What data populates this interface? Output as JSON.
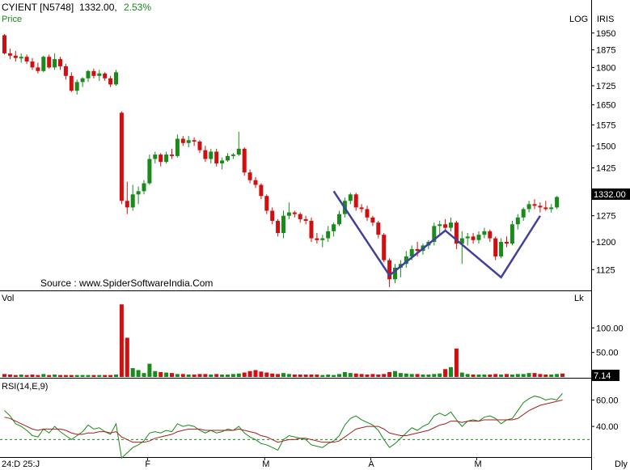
{
  "header": {
    "symbol": "CYIENT [N5748]",
    "last": "1332.00,",
    "change_pct": "2.53%",
    "change_color": "#1a8a1a"
  },
  "labels": {
    "price_panel": "Price",
    "log": "LOG",
    "iris": "IRIS",
    "source": "Source : www.SpiderSoftwareIndia.Com",
    "vol_panel": "Vol",
    "vol_unit": "Lk",
    "vol_badge": "7.14",
    "rsi_panel": "RSI(14,E,9)",
    "timeframe": "Dly",
    "price_badge": "1332.00",
    "date_start": "24:D 25:J"
  },
  "colors": {
    "up": "#1a8a1a",
    "down": "#d01010",
    "pattern": "#4040a0",
    "rsi_line": "#1a8a1a",
    "rsi_signal": "#a02020",
    "rsi_ref": "#1a8a1a"
  },
  "chart_data": [
    {
      "type": "candlestick",
      "panel": "price",
      "scale": "log",
      "ylim": [
        1080,
        1990
      ],
      "yticks": [
        1125,
        1200,
        1275,
        1350,
        1425,
        1500,
        1575,
        1650,
        1725,
        1800,
        1875,
        1950
      ],
      "xticks": [
        "F",
        "M",
        "A",
        "M"
      ],
      "candles": [
        [
          1940,
          1945,
          1855,
          1860
        ],
        [
          1860,
          1880,
          1835,
          1850
        ],
        [
          1850,
          1870,
          1825,
          1840
        ],
        [
          1838,
          1860,
          1820,
          1845
        ],
        [
          1845,
          1855,
          1815,
          1825
        ],
        [
          1825,
          1840,
          1790,
          1800
        ],
        [
          1800,
          1820,
          1775,
          1785
        ],
        [
          1785,
          1850,
          1780,
          1845
        ],
        [
          1845,
          1855,
          1795,
          1800
        ],
        [
          1800,
          1860,
          1790,
          1835
        ],
        [
          1835,
          1845,
          1790,
          1805
        ],
        [
          1805,
          1815,
          1750,
          1765
        ],
        [
          1765,
          1780,
          1700,
          1705
        ],
        [
          1705,
          1750,
          1690,
          1740
        ],
        [
          1740,
          1760,
          1720,
          1755
        ],
        [
          1755,
          1790,
          1740,
          1785
        ],
        [
          1785,
          1795,
          1755,
          1765
        ],
        [
          1765,
          1790,
          1745,
          1775
        ],
        [
          1775,
          1780,
          1745,
          1755
        ],
        [
          1755,
          1765,
          1720,
          1730
        ],
        [
          1730,
          1790,
          1725,
          1780
        ],
        [
          1620,
          1625,
          1310,
          1320
        ],
        [
          1320,
          1380,
          1280,
          1300
        ],
        [
          1300,
          1370,
          1290,
          1340
        ],
        [
          1340,
          1365,
          1310,
          1350
        ],
        [
          1350,
          1385,
          1340,
          1375
        ],
        [
          1375,
          1470,
          1370,
          1455
        ],
        [
          1455,
          1480,
          1440,
          1470
        ],
        [
          1470,
          1475,
          1430,
          1445
        ],
        [
          1445,
          1480,
          1440,
          1470
        ],
        [
          1470,
          1490,
          1455,
          1465
        ],
        [
          1465,
          1540,
          1460,
          1525
        ],
        [
          1525,
          1535,
          1500,
          1510
        ],
        [
          1510,
          1535,
          1495,
          1520
        ],
        [
          1520,
          1530,
          1500,
          1515
        ],
        [
          1515,
          1520,
          1475,
          1485
        ],
        [
          1485,
          1500,
          1445,
          1455
        ],
        [
          1455,
          1490,
          1440,
          1480
        ],
        [
          1480,
          1490,
          1430,
          1440
        ],
        [
          1440,
          1460,
          1420,
          1450
        ],
        [
          1450,
          1475,
          1445,
          1465
        ],
        [
          1465,
          1475,
          1455,
          1470
        ],
        [
          1470,
          1550,
          1465,
          1490
        ],
        [
          1490,
          1495,
          1400,
          1410
        ],
        [
          1410,
          1420,
          1375,
          1385
        ],
        [
          1385,
          1395,
          1360,
          1370
        ],
        [
          1370,
          1375,
          1325,
          1335
        ],
        [
          1335,
          1340,
          1280,
          1290
        ],
        [
          1290,
          1300,
          1250,
          1260
        ],
        [
          1260,
          1265,
          1215,
          1225
        ],
        [
          1225,
          1290,
          1210,
          1275
        ],
        [
          1275,
          1315,
          1265,
          1285
        ],
        [
          1285,
          1290,
          1270,
          1280
        ],
        [
          1280,
          1285,
          1255,
          1265
        ],
        [
          1265,
          1275,
          1250,
          1260
        ],
        [
          1260,
          1270,
          1200,
          1210
        ],
        [
          1210,
          1225,
          1195,
          1205
        ],
        [
          1205,
          1220,
          1185,
          1210
        ],
        [
          1210,
          1245,
          1200,
          1230
        ],
        [
          1230,
          1255,
          1215,
          1250
        ],
        [
          1250,
          1290,
          1245,
          1280
        ],
        [
          1280,
          1330,
          1270,
          1320
        ],
        [
          1320,
          1345,
          1310,
          1340
        ],
        [
          1340,
          1345,
          1290,
          1300
        ],
        [
          1300,
          1310,
          1285,
          1295
        ],
        [
          1295,
          1305,
          1260,
          1270
        ],
        [
          1270,
          1275,
          1245,
          1255
        ],
        [
          1255,
          1260,
          1210,
          1220
        ],
        [
          1220,
          1225,
          1145,
          1150
        ],
        [
          1150,
          1155,
          1080,
          1100
        ],
        [
          1100,
          1140,
          1090,
          1130
        ],
        [
          1130,
          1150,
          1105,
          1140
        ],
        [
          1140,
          1175,
          1130,
          1160
        ],
        [
          1160,
          1190,
          1150,
          1180
        ],
        [
          1180,
          1200,
          1160,
          1175
        ],
        [
          1175,
          1195,
          1165,
          1190
        ],
        [
          1190,
          1205,
          1180,
          1200
        ],
        [
          1200,
          1255,
          1190,
          1245
        ],
        [
          1245,
          1260,
          1220,
          1250
        ],
        [
          1250,
          1265,
          1230,
          1240
        ],
        [
          1240,
          1270,
          1230,
          1255
        ],
        [
          1255,
          1260,
          1180,
          1195
        ],
        [
          1195,
          1230,
          1140,
          1210
        ],
        [
          1210,
          1225,
          1190,
          1215
        ],
        [
          1215,
          1225,
          1195,
          1205
        ],
        [
          1205,
          1230,
          1195,
          1220
        ],
        [
          1220,
          1240,
          1210,
          1230
        ],
        [
          1230,
          1235,
          1200,
          1210
        ],
        [
          1210,
          1215,
          1150,
          1160
        ],
        [
          1160,
          1210,
          1155,
          1200
        ],
        [
          1200,
          1215,
          1185,
          1195
        ],
        [
          1195,
          1260,
          1190,
          1250
        ],
        [
          1250,
          1280,
          1235,
          1270
        ],
        [
          1270,
          1300,
          1260,
          1295
        ],
        [
          1295,
          1320,
          1285,
          1310
        ],
        [
          1310,
          1325,
          1295,
          1305
        ],
        [
          1305,
          1315,
          1285,
          1300
        ],
        [
          1300,
          1320,
          1290,
          1295
        ],
        [
          1295,
          1310,
          1285,
          1300
        ],
        [
          1300,
          1335,
          1295,
          1332
        ]
      ],
      "pattern_points": [
        [
          59,
          1350
        ],
        [
          69,
          1110
        ],
        [
          79,
          1232
        ],
        [
          89,
          1105
        ],
        [
          96,
          1275
        ]
      ]
    },
    {
      "type": "bar",
      "panel": "volume",
      "unit": "Lk",
      "ylim": [
        0,
        155
      ],
      "yticks": [
        50,
        100
      ],
      "values": [
        6,
        5,
        4,
        5,
        4,
        5,
        4,
        6,
        4,
        5,
        4,
        4,
        4,
        4,
        4,
        4,
        4,
        4,
        4,
        4,
        5,
        148,
        80,
        18,
        14,
        8,
        27,
        12,
        10,
        9,
        8,
        6,
        6,
        5,
        5,
        6,
        6,
        5,
        6,
        5,
        5,
        6,
        7,
        9,
        12,
        14,
        11,
        9,
        7,
        6,
        8,
        6,
        5,
        5,
        5,
        5,
        5,
        4,
        5,
        4,
        6,
        10,
        8,
        7,
        6,
        5,
        6,
        5,
        6,
        10,
        12,
        8,
        7,
        6,
        6,
        5,
        5,
        6,
        7,
        16,
        20,
        58,
        9,
        6,
        5,
        5,
        5,
        5,
        6,
        5,
        6,
        5,
        6,
        6,
        8,
        8,
        6,
        5,
        5,
        6,
        7
      ]
    },
    {
      "type": "line",
      "panel": "rsi",
      "ylim": [
        18,
        75
      ],
      "yticks": [
        40,
        60
      ],
      "reference": 30,
      "series": [
        {
          "name": "RSI(14)",
          "values": [
            52,
            48,
            42,
            40,
            37,
            33,
            32,
            38,
            35,
            40,
            36,
            33,
            30,
            33,
            36,
            41,
            38,
            39,
            36,
            34,
            42,
            16,
            20,
            24,
            26,
            29,
            35,
            36,
            35,
            37,
            36,
            42,
            40,
            41,
            40,
            37,
            35,
            37,
            35,
            36,
            38,
            37,
            40,
            35,
            32,
            30,
            27,
            26,
            24,
            22,
            30,
            33,
            32,
            31,
            30,
            26,
            25,
            24,
            27,
            29,
            33,
            41,
            46,
            48,
            45,
            43,
            41,
            37,
            30,
            24,
            27,
            31,
            35,
            39,
            37,
            40,
            42,
            48,
            50,
            48,
            51,
            45,
            40,
            44,
            45,
            44,
            47,
            48,
            46,
            42,
            45,
            46,
            52,
            58,
            61,
            63,
            62,
            60,
            61,
            60,
            65
          ]
        },
        {
          "name": "EMA(9)",
          "values": [
            47,
            46,
            44,
            42,
            40,
            38,
            37,
            38,
            38,
            38,
            38,
            37,
            35,
            34,
            34,
            35,
            35,
            36,
            36,
            35,
            36,
            32,
            30,
            28,
            28,
            28,
            29,
            31,
            32,
            33,
            34,
            36,
            37,
            38,
            38,
            38,
            37,
            37,
            37,
            37,
            37,
            37,
            38,
            37,
            36,
            35,
            33,
            32,
            30,
            28,
            29,
            30,
            30,
            31,
            31,
            30,
            29,
            28,
            28,
            28,
            29,
            32,
            35,
            38,
            39,
            40,
            40,
            40,
            38,
            35,
            34,
            33,
            33,
            34,
            35,
            36,
            37,
            39,
            41,
            42,
            44,
            44,
            43,
            44,
            44,
            44,
            45,
            45,
            45,
            45,
            45,
            45,
            46,
            49,
            52,
            54,
            56,
            57,
            58,
            59,
            60
          ]
        }
      ]
    }
  ]
}
